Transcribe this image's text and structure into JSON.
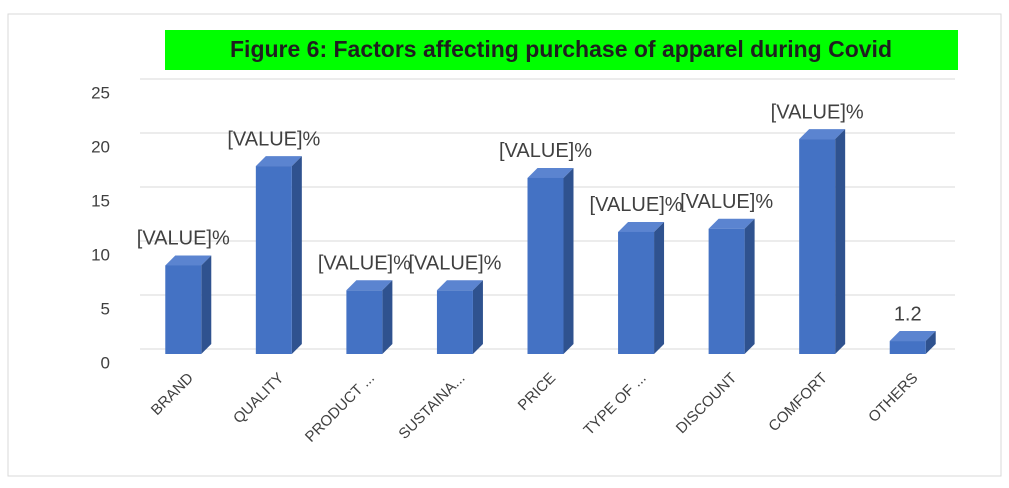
{
  "chart_data": {
    "type": "bar3d",
    "title": "Figure 6: Factors affecting purchase of apparel during Covid",
    "categories": [
      "BRAND",
      "QUALITY",
      "PRODUCT ...",
      "SUSTAINA...",
      "PRICE",
      "TYPE OF ...",
      "DISCOUNT",
      "COMFORT",
      "OTHERS"
    ],
    "values": [
      8.2,
      17.4,
      5.9,
      5.9,
      16.3,
      11.3,
      11.6,
      19.9,
      1.2
    ],
    "value_labels": [
      "[VALUE]%",
      "[VALUE]%",
      "[VALUE]%",
      "[VALUE]%",
      "[VALUE]%",
      "[VALUE]%",
      "[VALUE]%",
      "[VALUE]%",
      "1.2"
    ],
    "color": "#4472c4",
    "ylim": [
      0,
      25
    ],
    "yticks": [
      0,
      5,
      10,
      15,
      20,
      25
    ],
    "grid": true
  }
}
